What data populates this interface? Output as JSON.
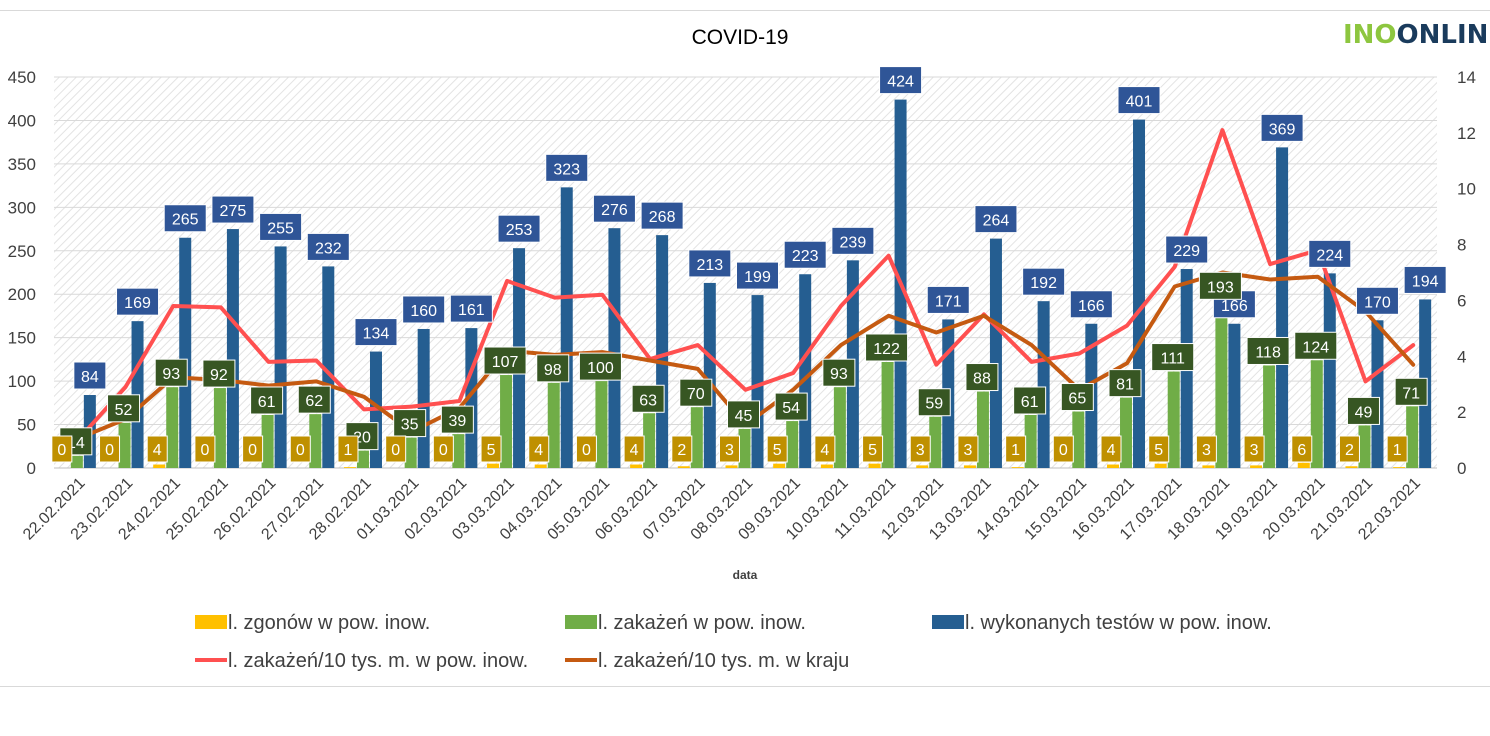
{
  "logo_text": "INOONLINE",
  "chart_data": {
    "type": "bar",
    "title": "COVID-19",
    "xlabel": "data",
    "ylabel": "",
    "y2label": "",
    "ylim": [
      0,
      450
    ],
    "y_ticks": [
      0,
      50,
      100,
      150,
      200,
      250,
      300,
      350,
      400,
      450
    ],
    "y2lim": [
      0,
      14
    ],
    "y2_ticks": [
      0,
      2,
      4,
      6,
      8,
      10,
      12,
      14
    ],
    "grid": true,
    "legend_position": "bottom",
    "categories": [
      "22.02.2021",
      "23.02.2021",
      "24.02.2021",
      "25.02.2021",
      "26.02.2021",
      "27.02.2021",
      "28.02.2021",
      "01.03.2021",
      "02.03.2021",
      "03.03.2021",
      "04.03.2021",
      "05.03.2021",
      "06.03.2021",
      "07.03.2021",
      "08.03.2021",
      "09.03.2021",
      "10.03.2021",
      "11.03.2021",
      "12.03.2021",
      "13.03.2021",
      "14.03.2021",
      "15.03.2021",
      "16.03.2021",
      "17.03.2021",
      "18.03.2021",
      "19.03.2021",
      "20.03.2021",
      "21.03.2021",
      "22.03.2021"
    ],
    "bar_series": [
      {
        "name": "l. zgonów w pow. inow.",
        "color": "#ffc000",
        "label_bg": "#bf9000",
        "axis": "left",
        "values": [
          0,
          0,
          4,
          0,
          0,
          0,
          1,
          0,
          0,
          5,
          4,
          0,
          4,
          2,
          3,
          5,
          4,
          5,
          3,
          3,
          1,
          0,
          4,
          5,
          3,
          3,
          6,
          2,
          1
        ]
      },
      {
        "name": "l. zakażeń w pow. inow.",
        "color": "#70ad47",
        "label_bg": "#375623",
        "axis": "left",
        "values": [
          14,
          52,
          93,
          92,
          61,
          62,
          20,
          35,
          39,
          107,
          98,
          100,
          63,
          70,
          45,
          54,
          93,
          122,
          59,
          88,
          61,
          65,
          81,
          111,
          193,
          118,
          124,
          49,
          71
        ]
      },
      {
        "name": "l. wykonanych testów w pow. inow.",
        "color": "#255e91",
        "label_bg": "#2f5597",
        "axis": "left",
        "values": [
          84,
          169,
          265,
          275,
          255,
          232,
          134,
          160,
          161,
          253,
          323,
          276,
          268,
          213,
          199,
          223,
          239,
          424,
          171,
          264,
          192,
          166,
          401,
          229,
          166,
          369,
          224,
          170,
          194
        ]
      }
    ],
    "line_series": [
      {
        "name": "l. zakażeń/10 tys. m. w pow. inow.",
        "color": "#ff5050",
        "axis": "right",
        "values": [
          1.0,
          2.9,
          5.8,
          5.75,
          3.8,
          3.85,
          2.1,
          2.2,
          2.4,
          6.7,
          6.1,
          6.2,
          3.9,
          4.4,
          2.8,
          3.4,
          5.8,
          7.6,
          3.7,
          5.5,
          3.8,
          4.1,
          5.1,
          7.2,
          12.1,
          7.3,
          7.8,
          3.1,
          4.4
        ]
      },
      {
        "name": "l. zakażeń/10 tys. m. w kraju",
        "color": "#c55a11",
        "axis": "right",
        "values": [
          1.05,
          1.75,
          3.25,
          3.15,
          2.95,
          3.1,
          2.55,
          1.3,
          2.15,
          4.2,
          4.05,
          4.15,
          3.85,
          3.55,
          1.55,
          2.8,
          4.4,
          5.45,
          4.85,
          5.45,
          4.4,
          2.8,
          3.75,
          6.5,
          7.0,
          6.75,
          6.85,
          5.6,
          3.7
        ]
      }
    ]
  }
}
